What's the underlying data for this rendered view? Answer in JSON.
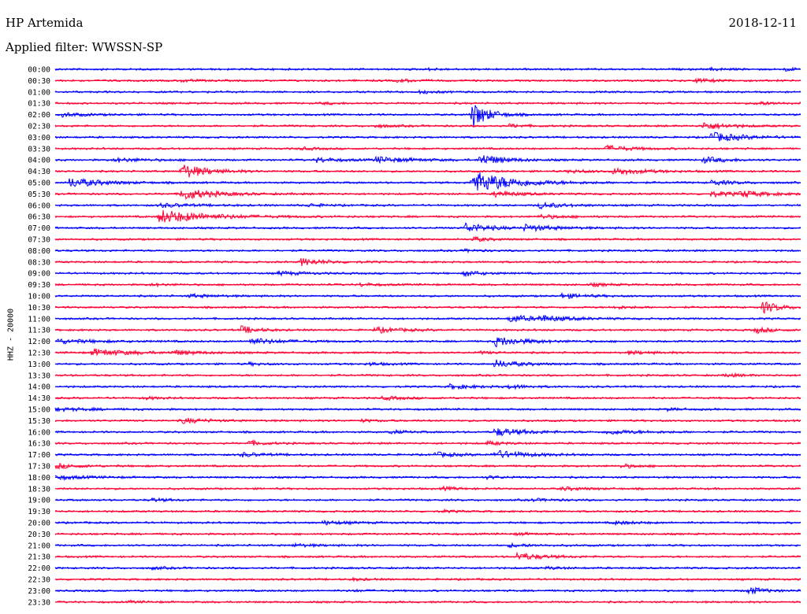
{
  "header": {
    "station": "HP Artemida",
    "date": "2018-12-11",
    "filter": "Applied filter: WWSSN-SP"
  },
  "chart_data": {
    "type": "line",
    "title": "HP Artemida",
    "subtitle": "Applied filter: WWSSN-SP",
    "date": "2018-12-11",
    "ylabel": "HHZ - 20000",
    "xlabel": "",
    "trace_colors": [
      "#0000ff",
      "#ff0033"
    ],
    "row_labels": [
      "00:00",
      "00:30",
      "01:00",
      "01:30",
      "02:00",
      "02:30",
      "03:00",
      "03:30",
      "04:00",
      "04:30",
      "05:00",
      "05:30",
      "06:00",
      "06:30",
      "07:00",
      "07:30",
      "08:00",
      "08:30",
      "09:00",
      "09:30",
      "10:00",
      "10:30",
      "11:00",
      "11:30",
      "12:00",
      "12:30",
      "13:00",
      "13:30",
      "14:00",
      "14:30",
      "15:00",
      "15:30",
      "16:00",
      "16:30",
      "17:00",
      "17:30",
      "18:00",
      "18:30",
      "19:00",
      "19:30",
      "20:00",
      "20:30",
      "21:00",
      "21:30",
      "22:00",
      "22:30",
      "23:00",
      "23:30"
    ],
    "events": [
      [
        0,
        0.5,
        0.5,
        0.02
      ],
      [
        0,
        0.88,
        0.6,
        0.02
      ],
      [
        0,
        0.98,
        0.8,
        0.015
      ],
      [
        1,
        0.17,
        0.6,
        0.02
      ],
      [
        1,
        0.46,
        0.8,
        0.02
      ],
      [
        1,
        0.86,
        0.9,
        0.025
      ],
      [
        2,
        0.49,
        0.7,
        0.02
      ],
      [
        3,
        0.36,
        0.5,
        0.02
      ],
      [
        3,
        0.94,
        0.8,
        0.03
      ],
      [
        4,
        0.01,
        1.0,
        0.03
      ],
      [
        4,
        0.56,
        7.0,
        0.02
      ],
      [
        5,
        0.43,
        0.7,
        0.02
      ],
      [
        5,
        0.61,
        0.8,
        0.02
      ],
      [
        5,
        0.87,
        2.0,
        0.03
      ],
      [
        6,
        0.88,
        2.5,
        0.04
      ],
      [
        7,
        0.33,
        0.6,
        0.02
      ],
      [
        7,
        0.74,
        1.5,
        0.03
      ],
      [
        8,
        0.08,
        1.0,
        0.04
      ],
      [
        8,
        0.35,
        1.2,
        0.03
      ],
      [
        8,
        0.43,
        1.4,
        0.05
      ],
      [
        8,
        0.57,
        2.8,
        0.03
      ],
      [
        8,
        0.87,
        1.5,
        0.03
      ],
      [
        9,
        0.17,
        4.0,
        0.03
      ],
      [
        9,
        0.69,
        0.8,
        0.03
      ],
      [
        9,
        0.75,
        1.6,
        0.04
      ],
      [
        10,
        0.02,
        2.5,
        0.04
      ],
      [
        10,
        0.56,
        6.0,
        0.05
      ],
      [
        10,
        0.88,
        1.2,
        0.03
      ],
      [
        11,
        0.17,
        3.0,
        0.04
      ],
      [
        11,
        0.59,
        1.5,
        0.03
      ],
      [
        11,
        0.88,
        1.2,
        0.04
      ],
      [
        11,
        0.92,
        1.4,
        0.03
      ],
      [
        12,
        0.14,
        1.0,
        0.04
      ],
      [
        12,
        0.34,
        0.8,
        0.02
      ],
      [
        12,
        0.65,
        1.5,
        0.03
      ],
      [
        13,
        0.14,
        3.5,
        0.06
      ],
      [
        13,
        0.65,
        1.0,
        0.03
      ],
      [
        14,
        0.55,
        2.5,
        0.03
      ],
      [
        14,
        0.63,
        1.5,
        0.04
      ],
      [
        15,
        0.56,
        1.2,
        0.02
      ],
      [
        16,
        0.55,
        0.6,
        0.02
      ],
      [
        17,
        0.33,
        1.8,
        0.03
      ],
      [
        18,
        0.3,
        1.0,
        0.03
      ],
      [
        18,
        0.55,
        1.5,
        0.02
      ],
      [
        19,
        0.13,
        0.6,
        0.02
      ],
      [
        19,
        0.41,
        0.8,
        0.02
      ],
      [
        19,
        0.72,
        0.8,
        0.02
      ],
      [
        20,
        0.18,
        0.8,
        0.03
      ],
      [
        20,
        0.68,
        1.2,
        0.03
      ],
      [
        21,
        0.75,
        0.8,
        0.02
      ],
      [
        21,
        0.95,
        3.0,
        0.02
      ],
      [
        22,
        0.61,
        2.0,
        0.03
      ],
      [
        22,
        0.65,
        1.2,
        0.04
      ],
      [
        23,
        0.25,
        2.0,
        0.02
      ],
      [
        23,
        0.43,
        1.5,
        0.03
      ],
      [
        23,
        0.94,
        1.5,
        0.02
      ],
      [
        24,
        0.0,
        1.2,
        0.05
      ],
      [
        24,
        0.26,
        1.6,
        0.04
      ],
      [
        24,
        0.59,
        2.5,
        0.04
      ],
      [
        25,
        0.05,
        1.8,
        0.05
      ],
      [
        25,
        0.16,
        1.0,
        0.03
      ],
      [
        25,
        0.57,
        0.6,
        0.02
      ],
      [
        25,
        0.77,
        0.8,
        0.03
      ],
      [
        26,
        0.26,
        0.6,
        0.02
      ],
      [
        26,
        0.42,
        0.8,
        0.02
      ],
      [
        26,
        0.59,
        2.0,
        0.03
      ],
      [
        27,
        0.9,
        0.8,
        0.02
      ],
      [
        28,
        0.53,
        1.2,
        0.03
      ],
      [
        28,
        0.61,
        1.0,
        0.02
      ],
      [
        29,
        0.12,
        0.6,
        0.02
      ],
      [
        29,
        0.44,
        0.8,
        0.03
      ],
      [
        30,
        0.0,
        0.8,
        0.05
      ],
      [
        30,
        0.82,
        0.6,
        0.02
      ],
      [
        31,
        0.17,
        1.4,
        0.03
      ],
      [
        31,
        0.41,
        0.6,
        0.02
      ],
      [
        32,
        0.45,
        0.8,
        0.02
      ],
      [
        32,
        0.59,
        2.0,
        0.04
      ],
      [
        32,
        0.74,
        1.0,
        0.05
      ],
      [
        33,
        0.26,
        1.2,
        0.02
      ],
      [
        33,
        0.58,
        1.0,
        0.02
      ],
      [
        34,
        0.25,
        1.0,
        0.03
      ],
      [
        34,
        0.51,
        1.2,
        0.03
      ],
      [
        34,
        0.59,
        2.0,
        0.04
      ],
      [
        35,
        0.0,
        1.2,
        0.03
      ],
      [
        35,
        0.76,
        1.0,
        0.02
      ],
      [
        36,
        0.0,
        1.0,
        0.04
      ],
      [
        36,
        0.58,
        0.7,
        0.02
      ],
      [
        37,
        0.52,
        0.8,
        0.02
      ],
      [
        37,
        0.68,
        0.8,
        0.03
      ],
      [
        38,
        0.13,
        0.8,
        0.02
      ],
      [
        38,
        0.64,
        0.6,
        0.03
      ],
      [
        39,
        0.52,
        0.5,
        0.02
      ],
      [
        40,
        0.36,
        1.0,
        0.03
      ],
      [
        40,
        0.75,
        0.8,
        0.03
      ],
      [
        41,
        0.62,
        0.6,
        0.02
      ],
      [
        42,
        0.32,
        0.7,
        0.03
      ],
      [
        42,
        0.61,
        0.8,
        0.03
      ],
      [
        43,
        0.62,
        2.0,
        0.03
      ],
      [
        44,
        0.13,
        0.6,
        0.02
      ],
      [
        44,
        0.66,
        0.6,
        0.02
      ],
      [
        45,
        0.4,
        0.5,
        0.02
      ],
      [
        46,
        0.4,
        0.4,
        0.02
      ],
      [
        46,
        0.93,
        2.0,
        0.02
      ],
      [
        47,
        0.1,
        0.4,
        0.02
      ]
    ]
  }
}
